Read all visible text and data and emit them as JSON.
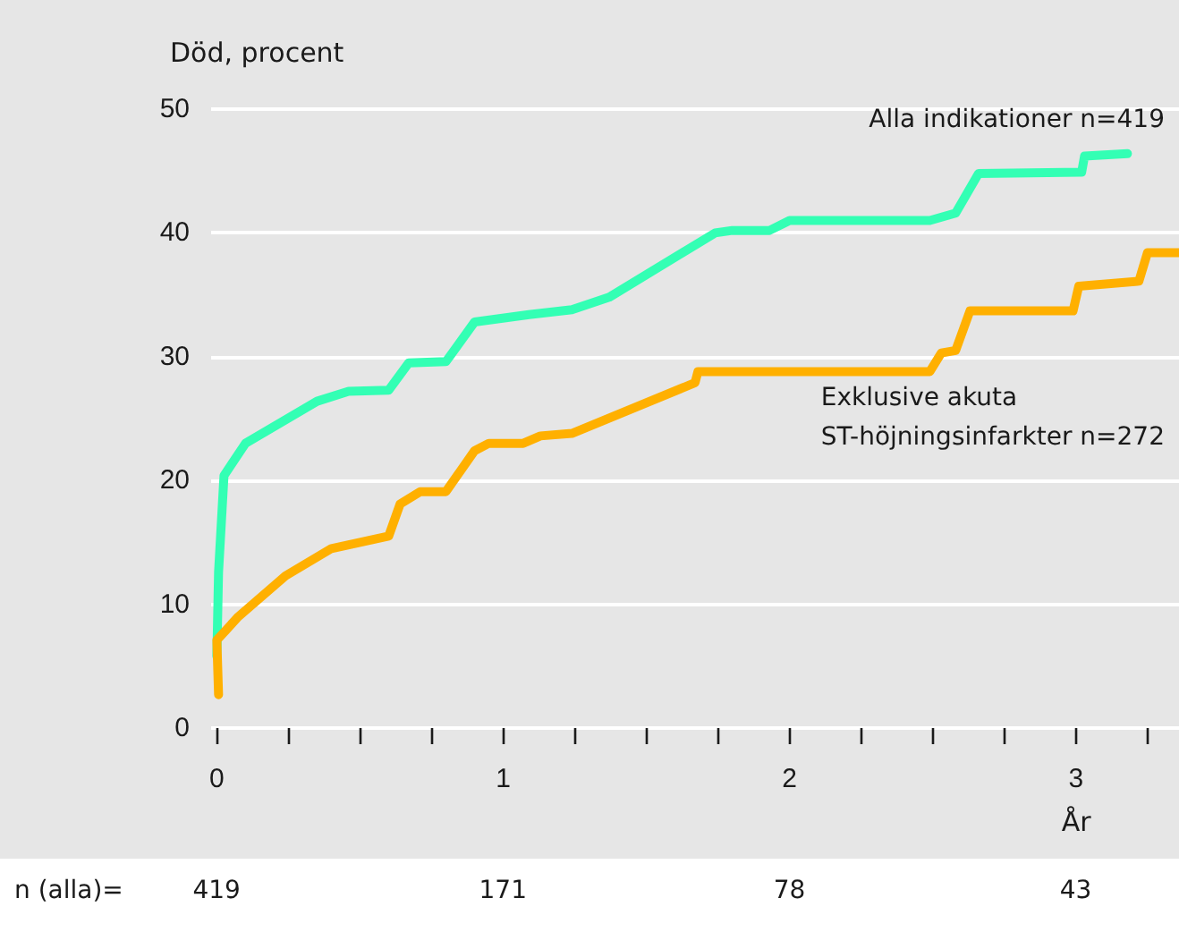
{
  "chart_data": {
    "type": "line",
    "ylabel": "Död, procent",
    "xlabel": "År",
    "xlim": [
      -0.02,
      3.36
    ],
    "ylim": [
      0,
      50
    ],
    "yticks": [
      0,
      10,
      20,
      30,
      40,
      50
    ],
    "xticks": [
      0,
      {
        "value": 0.25,
        "label": null
      },
      {
        "value": 0.5,
        "label": null
      },
      {
        "value": 0.75,
        "label": null
      },
      1,
      {
        "value": 1.25,
        "label": null
      },
      {
        "value": 1.5,
        "label": null
      },
      {
        "value": 1.75,
        "label": null
      },
      2,
      {
        "value": 2.25,
        "label": null
      },
      {
        "value": 2.5,
        "label": null
      },
      {
        "value": 2.75,
        "label": null
      },
      3,
      {
        "value": 3.25,
        "label": null
      }
    ],
    "grid": "y",
    "marker": "none",
    "line_style": "solid",
    "series": [
      {
        "name": "Alla indikationer n=419",
        "color": "#33ffb4",
        "x": [
          0,
          0.006,
          0.025,
          0.1,
          0.35,
          0.46,
          0.6,
          0.67,
          0.8,
          0.9,
          1.09,
          1.24,
          1.37,
          1.74,
          1.8,
          1.93,
          2.0,
          2.49,
          2.58,
          2.66,
          3.02,
          3.03,
          3.18
        ],
        "values": [
          5.8,
          12.6,
          20.4,
          23,
          26.4,
          27.2,
          27.3,
          29.5,
          29.6,
          32.8,
          33.4,
          33.8,
          34.8,
          40,
          40.2,
          40.2,
          41,
          41,
          41.6,
          44.8,
          44.9,
          46.2,
          46.4
        ]
      },
      {
        "name": "Exklusive akuta\nST-höjningsinfarkter n=272",
        "color": "#ffb000",
        "x": [
          0.006,
          0,
          0.075,
          0.24,
          0.4,
          0.6,
          0.64,
          0.71,
          0.8,
          0.9,
          0.95,
          1.07,
          1.13,
          1.24,
          1.67,
          1.68,
          2.49,
          2.53,
          2.58,
          2.63,
          2.99,
          3.01,
          3.22,
          3.25,
          3.36
        ],
        "values": [
          2.7,
          7.1,
          9,
          12.3,
          14.5,
          15.5,
          18.1,
          19.1,
          19.1,
          22.4,
          23,
          23,
          23.6,
          23.8,
          27.9,
          28.8,
          28.8,
          30.3,
          30.5,
          33.7,
          33.7,
          35.7,
          36.1,
          38.4,
          38.4
        ]
      }
    ],
    "annotations": [
      "n (alla)=",
      "419",
      "171",
      "78",
      "43"
    ]
  }
}
